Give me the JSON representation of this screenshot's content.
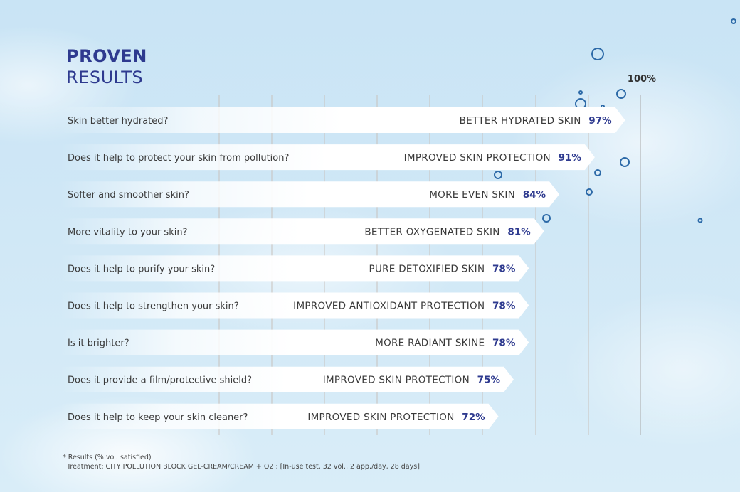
{
  "title": {
    "line1": "PROVEN",
    "line2": "RESULTS"
  },
  "chart_data": {
    "type": "bar",
    "orientation": "horizontal",
    "max_label": "100%",
    "xlim": [
      0,
      100
    ],
    "grid": true,
    "rows": [
      {
        "question": "Skin better hydrated?",
        "result": "BETTER HYDRATED SKIN",
        "value": 97,
        "value_label": "97%"
      },
      {
        "question": "Does it help to protect your skin from pollution?",
        "result": "IMPROVED SKIN PROTECTION",
        "value": 91,
        "value_label": "91%"
      },
      {
        "question": "Softer and smoother skin?",
        "result": "MORE EVEN SKIN",
        "value": 84,
        "value_label": "84%"
      },
      {
        "question": "More vitality to your skin?",
        "result": "BETTER OXYGENATED SKIN",
        "value": 81,
        "value_label": "81%"
      },
      {
        "question": "Does it help to purify your skin?",
        "result": "PURE DETOXIFIED SKIN",
        "value": 78,
        "value_label": "78%"
      },
      {
        "question": "Does it help to strengthen your skin?",
        "result": "IMPROVED ANTIOXIDANT PROTECTION",
        "value": 78,
        "value_label": "78%"
      },
      {
        "question": "Is it brighter?",
        "result": "MORE RADIANT SKINE",
        "value": 78,
        "value_label": "78%"
      },
      {
        "question": "Does it provide a film/protective shield?",
        "result": "IMPROVED SKIN PROTECTION",
        "value": 75,
        "value_label": "75%"
      },
      {
        "question": "Does it help to keep your skin cleaner?",
        "result": "IMPROVED SKIN PROTECTION",
        "value": 72,
        "value_label": "72%"
      }
    ]
  },
  "footnote": {
    "line1": "* Results (% vol. satisfied)",
    "line2": "Treatment: CITY POLLUTION BLOCK GEL-CREAM/CREAM + O2 : [In-use test, 32 vol., 2 app./day, 28 days]"
  },
  "colors": {
    "accent": "#2e3a8f",
    "text": "#3a3a3a",
    "bar": "#ffffff"
  }
}
